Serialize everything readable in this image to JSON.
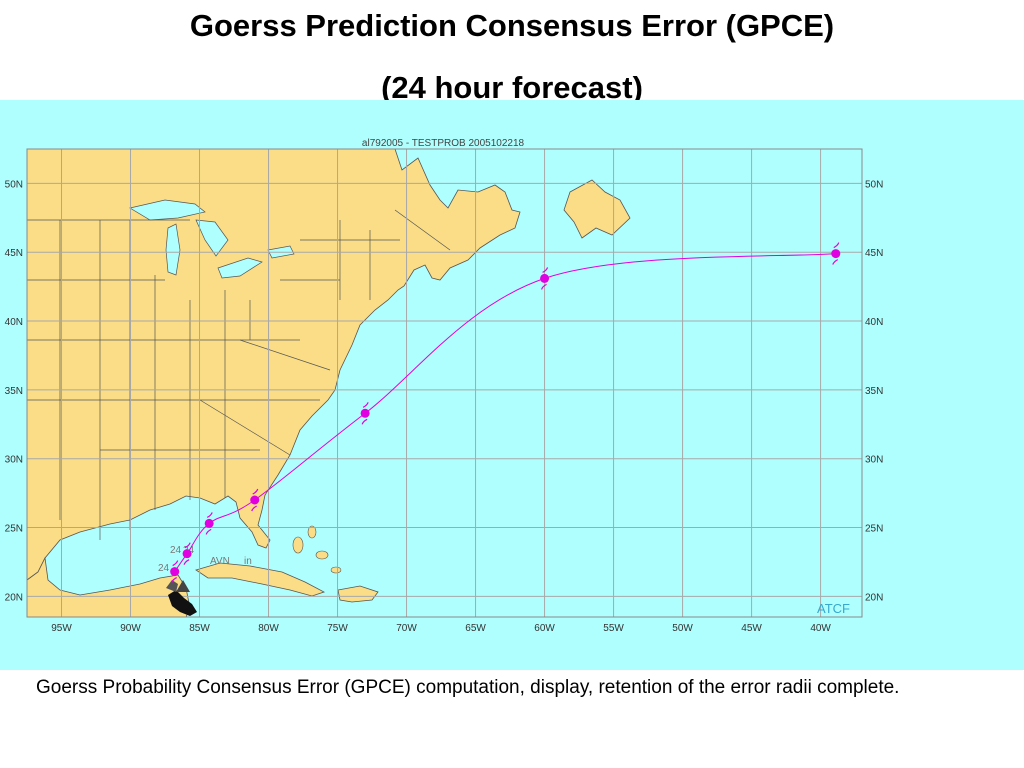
{
  "slide": {
    "title_line1": "Goerss Prediction Consensus Error (GPCE)",
    "title_line2": "(24 hour forecast)",
    "caption": "Goerss Probability Consensus Error (GPCE) computation, display, retention of the error radii complete."
  },
  "map": {
    "header": "al792005 - TESTPROB  2005102218",
    "watermark": "ATCF",
    "colors": {
      "ocean": "#b0ffff",
      "land": "#fadd86",
      "grid": "#a8a8a8",
      "border": "#666666",
      "track": "#e000e0"
    },
    "lon_labels": [
      "95W",
      "90W",
      "85W",
      "80W",
      "75W",
      "70W",
      "65W",
      "60W",
      "55W",
      "50W",
      "45W",
      "40W"
    ],
    "lat_labels": [
      "50N",
      "45N",
      "40N",
      "35N",
      "30N",
      "25N",
      "20N"
    ],
    "lon_values": [
      -95,
      -90,
      -85,
      -80,
      -75,
      -70,
      -65,
      -60,
      -55,
      -50,
      -45,
      -40
    ],
    "lat_values": [
      50,
      45,
      40,
      35,
      30,
      25,
      20
    ],
    "extent": {
      "lon": [
        -97.5,
        -37.0
      ],
      "lat": [
        18.5,
        52.5
      ]
    },
    "track_positions": [
      {
        "lon": -86.8,
        "lat": 21.8
      },
      {
        "lon": -85.9,
        "lat": 23.1
      },
      {
        "lon": -84.3,
        "lat": 25.3
      },
      {
        "lon": -81.0,
        "lat": 27.0
      },
      {
        "lon": -73.0,
        "lat": 33.3
      },
      {
        "lon": -60.0,
        "lat": 43.1
      },
      {
        "lon": -38.9,
        "lat": 44.9
      }
    ],
    "aid_labels": [
      "24",
      "24",
      "24",
      "AVN",
      "in"
    ]
  }
}
